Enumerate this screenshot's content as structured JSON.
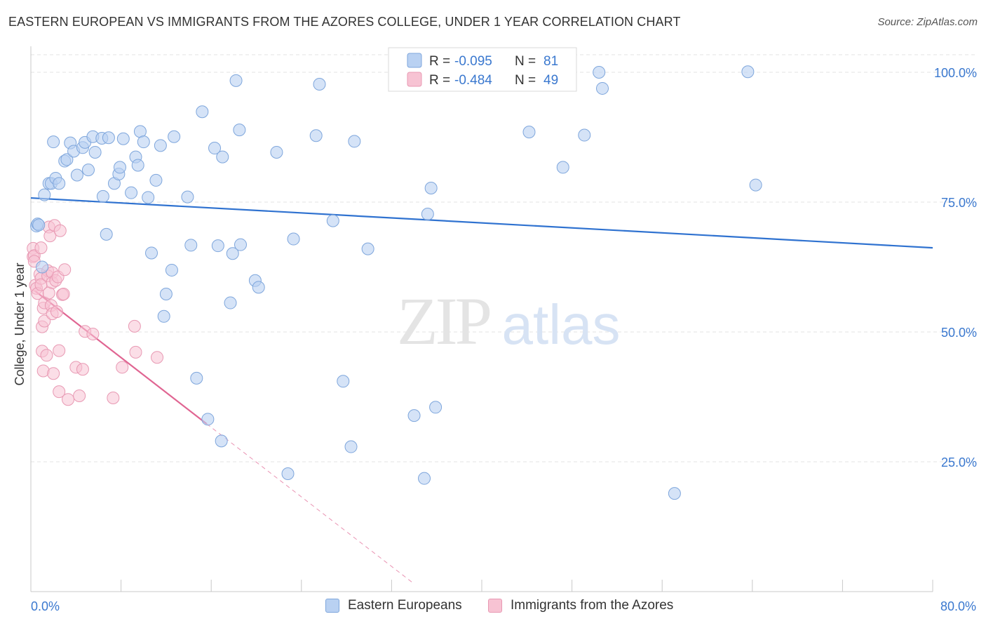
{
  "title": "EASTERN EUROPEAN VS IMMIGRANTS FROM THE AZORES COLLEGE, UNDER 1 YEAR CORRELATION CHART",
  "source": "Source: ZipAtlas.com",
  "watermark": {
    "zip": "ZIP",
    "atlas": "atlas"
  },
  "colors": {
    "blue_fill": "#b9d1f2",
    "blue_stroke": "#7ea6dc",
    "blue_line": "#2f72d0",
    "blue_text": "#3a78cf",
    "pink_fill": "#f7c3d3",
    "pink_stroke": "#e899b3",
    "pink_line": "#e06592",
    "grid": "#e3e3e3",
    "axis": "#c8c8c8"
  },
  "legend": {
    "rows": [
      {
        "r_label": "R =",
        "r_value": "-0.095",
        "n_label": "N =",
        "n_value": "81",
        "color": "blue"
      },
      {
        "r_label": "R =",
        "r_value": "-0.484",
        "n_label": "N =",
        "n_value": "49",
        "color": "pink"
      }
    ]
  },
  "chart_data": {
    "type": "scatter",
    "title": "EASTERN EUROPEAN VS IMMIGRANTS FROM THE AZORES COLLEGE, UNDER 1 YEAR CORRELATION CHART",
    "xlabel": "",
    "ylabel": "College, Under 1 year",
    "xlim": [
      0,
      80
    ],
    "ylim": [
      0,
      105
    ],
    "x_tick_labels": [
      "0.0%",
      "80.0%"
    ],
    "y_ticks": [
      25,
      50,
      75,
      100
    ],
    "y_tick_labels": [
      "25.0%",
      "50.0%",
      "75.0%",
      "100.0%"
    ],
    "grid": true,
    "legend_position": "top-center",
    "series": [
      {
        "name": "Eastern Europeans",
        "color": "blue",
        "r": -0.095,
        "n": 81,
        "trend": {
          "x": [
            0,
            80
          ],
          "y": [
            75.8,
            66.2
          ]
        },
        "points": [
          [
            0.5,
            70.4
          ],
          [
            0.6,
            70.8
          ],
          [
            1.2,
            76.4
          ],
          [
            1.6,
            78.6
          ],
          [
            1.8,
            78.6
          ],
          [
            2.2,
            79.6
          ],
          [
            2.5,
            78.6
          ],
          [
            3.0,
            82.9
          ],
          [
            3.2,
            83.2
          ],
          [
            3.5,
            86.4
          ],
          [
            3.8,
            84.8
          ],
          [
            4.1,
            80.2
          ],
          [
            4.6,
            85.5
          ],
          [
            4.8,
            86.5
          ],
          [
            5.1,
            81.2
          ],
          [
            5.5,
            87.6
          ],
          [
            5.7,
            84.6
          ],
          [
            6.3,
            87.3
          ],
          [
            6.4,
            76.1
          ],
          [
            6.7,
            68.8
          ],
          [
            7.4,
            78.6
          ],
          [
            7.8,
            80.4
          ],
          [
            7.9,
            81.7
          ],
          [
            8.2,
            87.2
          ],
          [
            8.9,
            76.8
          ],
          [
            9.3,
            83.7
          ],
          [
            9.5,
            82.1
          ],
          [
            9.7,
            88.6
          ],
          [
            10.0,
            86.6
          ],
          [
            10.4,
            75.9
          ],
          [
            10.7,
            65.2
          ],
          [
            11.1,
            79.2
          ],
          [
            11.5,
            85.9
          ],
          [
            11.8,
            53.0
          ],
          [
            12.0,
            57.3
          ],
          [
            12.5,
            61.9
          ],
          [
            12.7,
            87.6
          ],
          [
            13.9,
            76.0
          ],
          [
            14.2,
            66.7
          ],
          [
            14.7,
            41.1
          ],
          [
            15.2,
            92.4
          ],
          [
            15.7,
            33.2
          ],
          [
            16.3,
            85.4
          ],
          [
            16.6,
            66.6
          ],
          [
            16.9,
            29.0
          ],
          [
            17.0,
            83.7
          ],
          [
            17.7,
            55.6
          ],
          [
            17.9,
            65.1
          ],
          [
            18.2,
            98.4
          ],
          [
            18.5,
            88.9
          ],
          [
            18.6,
            66.8
          ],
          [
            19.9,
            59.9
          ],
          [
            20.2,
            58.6
          ],
          [
            21.8,
            84.6
          ],
          [
            22.8,
            22.7
          ],
          [
            23.3,
            67.9
          ],
          [
            25.3,
            87.8
          ],
          [
            25.6,
            97.7
          ],
          [
            26.8,
            71.4
          ],
          [
            27.7,
            40.5
          ],
          [
            28.4,
            27.9
          ],
          [
            28.7,
            86.7
          ],
          [
            29.9,
            66.0
          ],
          [
            34.0,
            33.9
          ],
          [
            34.9,
            21.8
          ],
          [
            35.2,
            72.7
          ],
          [
            35.5,
            77.7
          ],
          [
            35.9,
            35.5
          ],
          [
            39.3,
            100.1
          ],
          [
            44.2,
            88.5
          ],
          [
            47.2,
            81.7
          ],
          [
            49.1,
            87.9
          ],
          [
            50.4,
            100.0
          ],
          [
            50.7,
            96.9
          ],
          [
            57.1,
            18.9
          ],
          [
            63.6,
            100.1
          ],
          [
            64.3,
            78.3
          ],
          [
            0.7,
            70.6
          ],
          [
            1.0,
            62.5
          ],
          [
            2.0,
            86.6
          ],
          [
            6.9,
            87.4
          ]
        ]
      },
      {
        "name": "Immigrants from the Azores",
        "color": "pink",
        "r": -0.484,
        "n": 49,
        "trend": {
          "x": [
            0.3,
            15.6
          ],
          "y": [
            58.0,
            32.3
          ]
        },
        "trend_extension": {
          "x": [
            15.6,
            34.0
          ],
          "y": [
            32.3,
            1.5
          ]
        },
        "points": [
          [
            0.2,
            66.1
          ],
          [
            0.2,
            64.5
          ],
          [
            0.3,
            64.7
          ],
          [
            0.3,
            63.6
          ],
          [
            0.4,
            59.0
          ],
          [
            0.5,
            58.4
          ],
          [
            0.6,
            57.4
          ],
          [
            0.8,
            61.1
          ],
          [
            0.9,
            60.3
          ],
          [
            0.9,
            59.1
          ],
          [
            0.9,
            66.2
          ],
          [
            1.0,
            51.0
          ],
          [
            1.0,
            46.3
          ],
          [
            1.1,
            42.5
          ],
          [
            1.1,
            54.6
          ],
          [
            1.2,
            55.6
          ],
          [
            1.2,
            52.1
          ],
          [
            1.4,
            45.5
          ],
          [
            1.5,
            61.8
          ],
          [
            1.5,
            60.8
          ],
          [
            1.6,
            57.5
          ],
          [
            1.6,
            70.2
          ],
          [
            1.7,
            68.5
          ],
          [
            1.8,
            55.1
          ],
          [
            1.9,
            61.4
          ],
          [
            1.9,
            59.5
          ],
          [
            1.9,
            53.5
          ],
          [
            2.0,
            42.0
          ],
          [
            2.1,
            70.5
          ],
          [
            2.2,
            59.9
          ],
          [
            2.3,
            53.9
          ],
          [
            2.4,
            60.6
          ],
          [
            2.5,
            38.5
          ],
          [
            2.5,
            46.4
          ],
          [
            2.6,
            69.5
          ],
          [
            2.8,
            57.2
          ],
          [
            2.9,
            57.3
          ],
          [
            3.0,
            62.0
          ],
          [
            3.3,
            37.0
          ],
          [
            4.0,
            43.2
          ],
          [
            4.3,
            37.7
          ],
          [
            4.6,
            42.8
          ],
          [
            4.8,
            50.1
          ],
          [
            5.5,
            49.6
          ],
          [
            7.3,
            37.3
          ],
          [
            8.1,
            43.2
          ],
          [
            9.2,
            51.1
          ],
          [
            9.3,
            46.1
          ],
          [
            11.2,
            45.1
          ]
        ]
      }
    ]
  }
}
